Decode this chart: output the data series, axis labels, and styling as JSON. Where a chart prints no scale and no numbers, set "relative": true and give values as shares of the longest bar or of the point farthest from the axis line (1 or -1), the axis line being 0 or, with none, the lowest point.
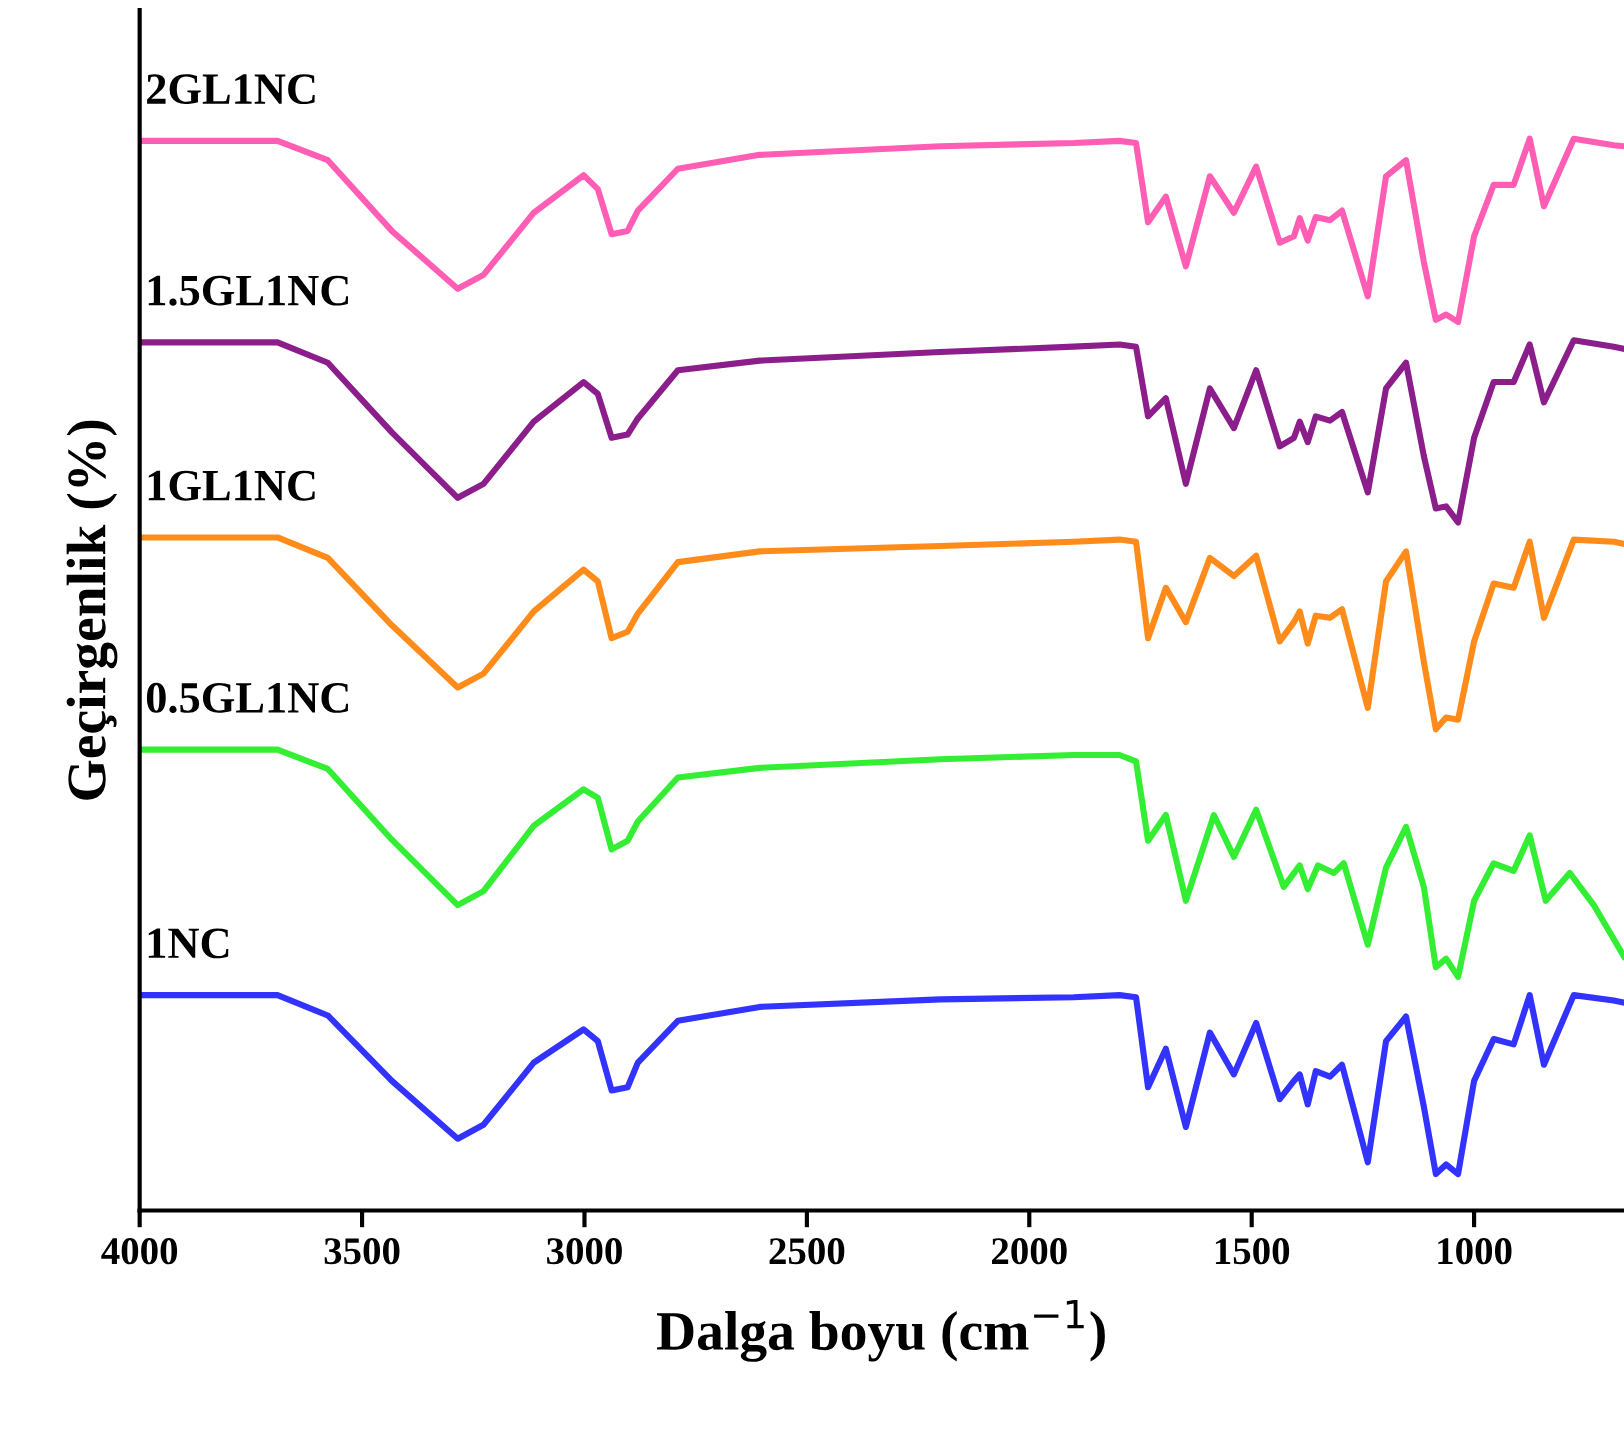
{
  "chart_data": {
    "type": "line",
    "relative": true,
    "xlabel": "Dalga boyu (cm$^{−1}$)",
    "ylabel": "Geçirgenlik (%)",
    "x": [
      4000,
      3690,
      3577,
      3433,
      3285,
      3227,
      3114,
      3002,
      2970,
      2939,
      2903,
      2880,
      2790,
      2606,
      2200,
      1900,
      1797,
      1760,
      1733,
      1693,
      1648,
      1594,
      1540,
      1490,
      1437,
      1405,
      1392,
      1374,
      1356,
      1324,
      1297,
      1239,
      1198,
      1153,
      1113,
      1086,
      1063,
      1036,
      1000,
      956,
      911,
      875,
      843,
      776,
      686,
      663
    ],
    "xlim": [
      4000,
      663
    ],
    "xticks": [
      4000,
      3500,
      3000,
      2500,
      2000,
      1500,
      1000
    ],
    "grid": false,
    "legend": false,
    "marker": "none",
    "line_style": "solid",
    "tick_labels": "x",
    "series": [
      {
        "name": "2GL1NC",
        "color": "#ff5eb4",
        "values": [
          0.998,
          0.998,
          0.98,
          0.914,
          0.86,
          0.873,
          0.931,
          0.966,
          0.953,
          0.911,
          0.914,
          0.933,
          0.972,
          0.985,
          0.993,
          0.996,
          0.998,
          0.996,
          0.922,
          0.946,
          0.881,
          0.965,
          0.931,
          0.974,
          0.903,
          0.909,
          0.926,
          0.905,
          0.927,
          0.924,
          0.933,
          0.853,
          0.965,
          0.98,
          0.885,
          0.831,
          0.836,
          0.829,
          0.909,
          0.957,
          0.957,
          1,
          0.937,
          1,
          0.994,
          0.993
        ]
      },
      {
        "name": "1.5GL1NC",
        "color": "#8b1e8b",
        "values": [
          0.81,
          0.81,
          0.791,
          0.726,
          0.665,
          0.678,
          0.736,
          0.773,
          0.762,
          0.721,
          0.724,
          0.739,
          0.784,
          0.793,
          0.801,
          0.806,
          0.808,
          0.806,
          0.741,
          0.758,
          0.678,
          0.767,
          0.73,
          0.784,
          0.713,
          0.721,
          0.736,
          0.717,
          0.741,
          0.737,
          0.745,
          0.67,
          0.767,
          0.791,
          0.704,
          0.655,
          0.657,
          0.642,
          0.721,
          0.773,
          0.773,
          0.808,
          0.754,
          0.812,
          0.806,
          0.804
        ]
      },
      {
        "name": "1GL1NC",
        "color": "#ff8c1a",
        "values": [
          0.628,
          0.628,
          0.609,
          0.546,
          0.488,
          0.501,
          0.559,
          0.598,
          0.587,
          0.534,
          0.54,
          0.557,
          0.605,
          0.615,
          0.62,
          0.624,
          0.626,
          0.624,
          0.534,
          0.581,
          0.549,
          0.609,
          0.592,
          0.611,
          0.531,
          0.549,
          0.559,
          0.529,
          0.555,
          0.553,
          0.561,
          0.469,
          0.587,
          0.615,
          0.512,
          0.449,
          0.46,
          0.458,
          0.531,
          0.585,
          0.581,
          0.624,
          0.553,
          0.626,
          0.624,
          0.622
        ]
      },
      {
        "name": "0.5GL1NC",
        "color": "#33ee33",
        "x": [
          4000,
          3690,
          3577,
          3433,
          3285,
          3227,
          3114,
          3002,
          2970,
          2939,
          2903,
          2880,
          2790,
          2606,
          2200,
          1900,
          1797,
          1760,
          1733,
          1693,
          1648,
          1585,
          1540,
          1490,
          1428,
          1392,
          1374,
          1351,
          1315,
          1293,
          1239,
          1198,
          1153,
          1113,
          1086,
          1063,
          1036,
          1000,
          956,
          911,
          875,
          839,
          785,
          731,
          663
        ],
        "values": [
          0.43,
          0.43,
          0.412,
          0.346,
          0.285,
          0.298,
          0.359,
          0.393,
          0.385,
          0.337,
          0.345,
          0.363,
          0.404,
          0.413,
          0.421,
          0.425,
          0.425,
          0.419,
          0.345,
          0.369,
          0.289,
          0.369,
          0.33,
          0.374,
          0.302,
          0.322,
          0.3,
          0.322,
          0.315,
          0.324,
          0.248,
          0.32,
          0.358,
          0.302,
          0.227,
          0.235,
          0.218,
          0.289,
          0.324,
          0.317,
          0.35,
          0.289,
          0.315,
          0.285,
          0.237
        ]
      },
      {
        "name": "1NC",
        "color": "#3333ff",
        "values": [
          0.201,
          0.201,
          0.182,
          0.121,
          0.067,
          0.08,
          0.138,
          0.169,
          0.158,
          0.112,
          0.115,
          0.138,
          0.177,
          0.19,
          0.197,
          0.199,
          0.201,
          0.199,
          0.115,
          0.151,
          0.078,
          0.166,
          0.127,
          0.175,
          0.104,
          0.121,
          0.127,
          0.099,
          0.13,
          0.125,
          0.136,
          0.045,
          0.158,
          0.181,
          0.097,
          0.034,
          0.043,
          0.034,
          0.121,
          0.16,
          0.155,
          0.201,
          0.136,
          0.201,
          0.196,
          0.194
        ]
      }
    ]
  }
}
